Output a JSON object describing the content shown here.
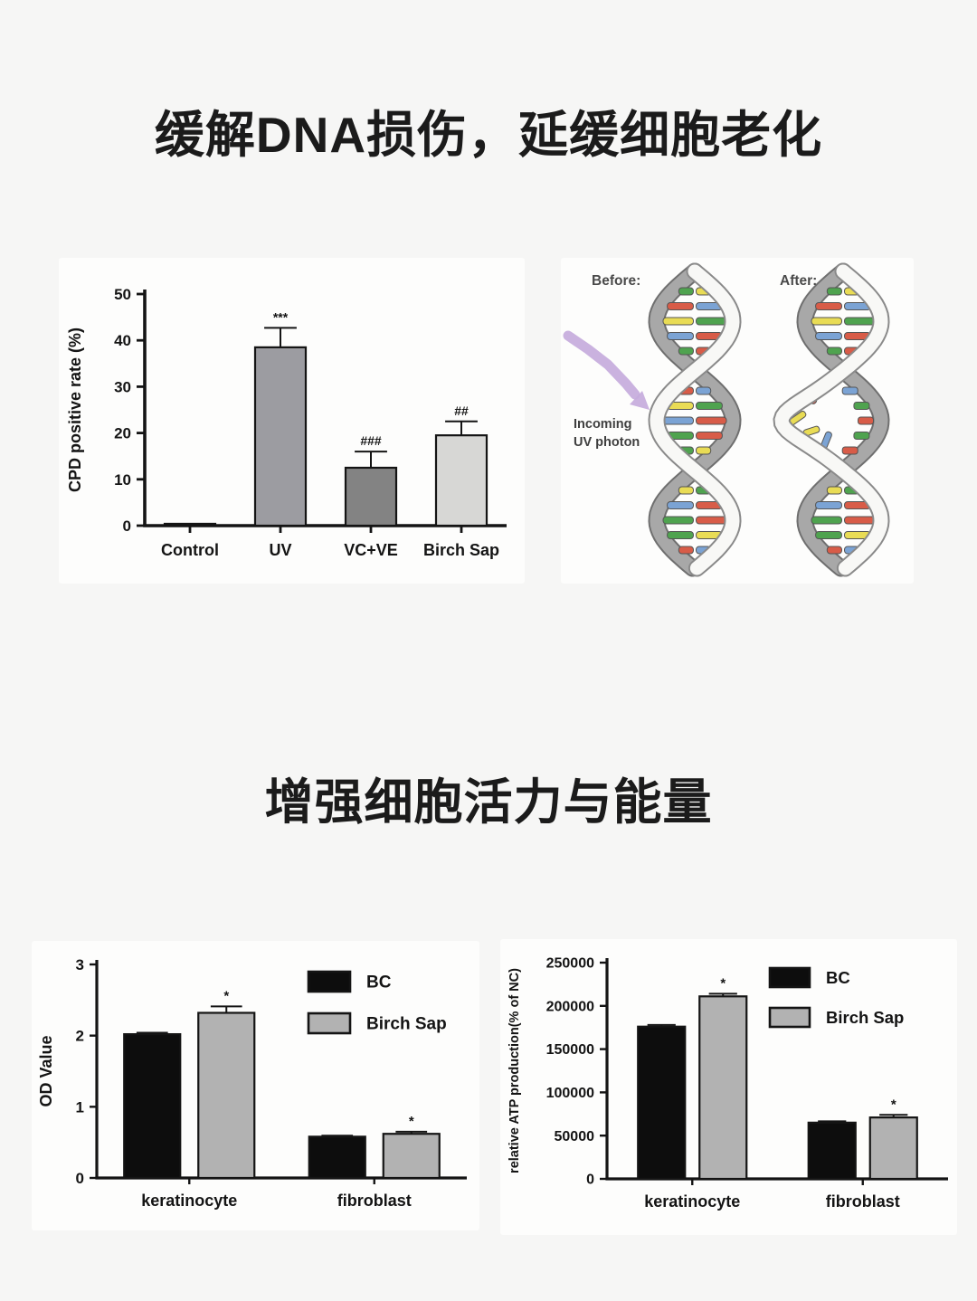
{
  "page": {
    "background": "#f6f6f5",
    "panel_background": "#fdfdfc",
    "text_color": "#1b1b1b"
  },
  "titles": {
    "title1": "缓解DNA损伤，延缓细胞老化",
    "title2": "增强细胞活力与能量"
  },
  "dna_figure": {
    "before_label": "Before:",
    "after_label": "After:",
    "photon_label_line1": "Incoming",
    "photon_label_line2": "UV photon",
    "arrow_color": "#c5abdc",
    "strand_gray": "#a8a8a8",
    "strand_gray_outline": "#6f6f6f",
    "strand_white": "#f8f8f6",
    "strand_white_outline": "#8a8a8a",
    "base_colors": {
      "red": "#d85c48",
      "blue": "#7ba3d4",
      "yellow": "#e9dc55",
      "green": "#4fa34f"
    },
    "label_color": "#4a4a4a"
  },
  "chart_data": [
    {
      "id": "cpd",
      "type": "bar",
      "title": "",
      "xlabel": "",
      "ylabel": "CPD positive rate (%)",
      "ylim": [
        0,
        50
      ],
      "yticks": [
        0,
        10,
        20,
        30,
        40,
        50
      ],
      "categories": [
        "Control",
        "UV",
        "VC+VE",
        "Birch Sap"
      ],
      "values": [
        0.4,
        38.5,
        12.5,
        19.5
      ],
      "errors": [
        0,
        4.2,
        3.5,
        3.0
      ],
      "annotations": [
        "",
        "***",
        "###",
        "##"
      ],
      "bar_colors": [
        "#9c9c9c",
        "#9c9ca1",
        "#838383",
        "#d7d7d5"
      ],
      "grid": false
    },
    {
      "id": "od",
      "type": "bar",
      "title": "",
      "xlabel": "",
      "ylabel": "OD Value",
      "ylim": [
        0,
        3
      ],
      "yticks": [
        0,
        1,
        2,
        3
      ],
      "categories": [
        "keratinocyte",
        "fibroblast"
      ],
      "series": [
        {
          "name": "BC",
          "color": "#0d0d0d",
          "values": [
            2.02,
            0.58
          ],
          "errors": [
            0.02,
            0.015
          ],
          "annotations": [
            "",
            ""
          ]
        },
        {
          "name": "Birch Sap",
          "color": "#b2b2b2",
          "values": [
            2.32,
            0.62
          ],
          "errors": [
            0.09,
            0.03
          ],
          "annotations": [
            "*",
            "*"
          ]
        }
      ],
      "legend_position": "top-right",
      "grid": false
    },
    {
      "id": "atp",
      "type": "bar",
      "title": "",
      "xlabel": "",
      "ylabel": "relative ATP production(% of NC)",
      "ylim": [
        0,
        250000
      ],
      "yticks": [
        0,
        50000,
        100000,
        150000,
        200000,
        250000
      ],
      "categories": [
        "keratinocyte",
        "fibroblast"
      ],
      "series": [
        {
          "name": "BC",
          "color": "#0d0d0d",
          "values": [
            176000,
            65000
          ],
          "errors": [
            2000,
            1500
          ],
          "annotations": [
            "",
            ""
          ]
        },
        {
          "name": "Birch Sap",
          "color": "#b2b2b2",
          "values": [
            211000,
            71000
          ],
          "errors": [
            3000,
            3000
          ],
          "annotations": [
            "*",
            "*"
          ]
        }
      ],
      "legend_position": "top-right",
      "grid": false
    }
  ]
}
